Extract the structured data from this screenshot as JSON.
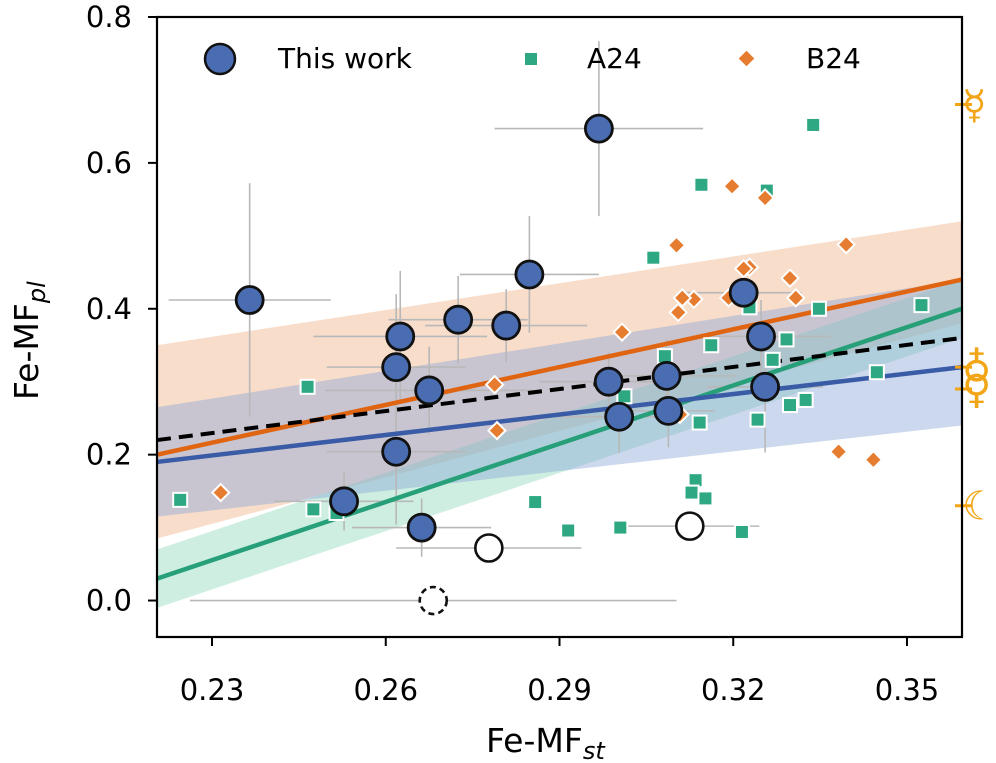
{
  "chart_data": {
    "type": "scatter",
    "xlabel_main": "Fe-MF",
    "xlabel_sub": "st",
    "ylabel_main": "Fe-MF",
    "ylabel_sub": "pl",
    "xlim": [
      0.2205,
      0.3595
    ],
    "ylim": [
      -0.05,
      0.8
    ],
    "xticks": [
      0.23,
      0.26,
      0.29,
      0.32,
      0.35
    ],
    "xtick_labels": [
      "0.23",
      "0.26",
      "0.29",
      "0.32",
      "0.35"
    ],
    "yticks": [
      0.0,
      0.2,
      0.4,
      0.6,
      0.8
    ],
    "ytick_labels": [
      "0.0",
      "0.2",
      "0.4",
      "0.6",
      "0.8"
    ],
    "legend": [
      {
        "label": "This work",
        "marker": "circle",
        "color": "#4a6db2"
      },
      {
        "label": "A24",
        "marker": "square",
        "color": "#2ea882"
      },
      {
        "label": "B24",
        "marker": "diamond",
        "color": "#e57c2f"
      }
    ],
    "colors": {
      "this_work": "#4a6db2",
      "a24": "#2ea882",
      "b24": "#e57c2f",
      "planet": "#f2a516",
      "errorbar": "#b8b8b8"
    },
    "fits": [
      {
        "name": "B24 fit",
        "color": "#e06512",
        "x": [
          0.2205,
          0.3595
        ],
        "y": [
          0.2,
          0.44
        ],
        "band_lo": [
          0.085,
          0.38
        ],
        "band_hi": [
          0.35,
          0.52
        ],
        "band_color": "#f0b48a"
      },
      {
        "name": "A24 fit",
        "color": "#27a07a",
        "x": [
          0.2205,
          0.3595
        ],
        "y": [
          0.03,
          0.4
        ],
        "band_lo": [
          -0.01,
          0.36
        ],
        "band_hi": [
          0.07,
          0.44
        ],
        "band_color": "#90d9bd"
      },
      {
        "name": "This work fit",
        "color": "#3a5ba6",
        "x": [
          0.2205,
          0.3595
        ],
        "y": [
          0.19,
          0.32
        ],
        "band_lo": [
          0.115,
          0.24
        ],
        "band_hi": [
          0.265,
          0.44
        ],
        "band_color": "#8ea8d6"
      },
      {
        "name": "Combined fit",
        "color": "#000000",
        "dashed": true,
        "x": [
          0.2205,
          0.3595
        ],
        "y": [
          0.22,
          0.36
        ]
      }
    ],
    "series": [
      {
        "name": "This work",
        "marker": "circle",
        "points": [
          [
            0.2365,
            0.412,
            0.014,
            0.16
          ],
          [
            0.2618,
            0.32,
            0.012,
            0.1
          ],
          [
            0.2625,
            0.362,
            0.015,
            0.09
          ],
          [
            0.2618,
            0.204,
            0.012,
            0.1
          ],
          [
            0.2675,
            0.288,
            0.018,
            0.06
          ],
          [
            0.2725,
            0.385,
            0.012,
            0.06
          ],
          [
            0.2808,
            0.377,
            0.014,
            0.05
          ],
          [
            0.2848,
            0.447,
            0.012,
            0.08
          ],
          [
            0.2968,
            0.647,
            0.018,
            0.12
          ],
          [
            0.2985,
            0.3,
            0.012,
            0.04
          ],
          [
            0.3003,
            0.252,
            0.012,
            0.05
          ],
          [
            0.3085,
            0.308,
            0.012,
            0.05
          ],
          [
            0.3088,
            0.26,
            0.008,
            0.05
          ],
          [
            0.3218,
            0.422,
            0.01,
            0.03
          ],
          [
            0.3248,
            0.362,
            0.012,
            0.05
          ],
          [
            0.3255,
            0.293,
            0.01,
            0.09
          ],
          [
            0.2528,
            0.136,
            0.012,
            0.04
          ],
          [
            0.2662,
            0.1,
            0.012,
            0.04
          ]
        ]
      },
      {
        "name": "This work (open)",
        "marker": "open-circle",
        "points": [
          [
            0.2778,
            0.072,
            0.016,
            0.0
          ],
          [
            0.3125,
            0.102,
            0.012,
            0.0
          ]
        ]
      },
      {
        "name": "This work (dashed)",
        "marker": "dashed-circle",
        "points": [
          [
            0.2682,
            0.0,
            0.042,
            0.0
          ]
        ]
      },
      {
        "name": "A24",
        "marker": "square",
        "points": [
          [
            0.3338,
            0.652
          ],
          [
            0.3258,
            0.562
          ],
          [
            0.3145,
            0.57
          ],
          [
            0.3062,
            0.47
          ],
          [
            0.2245,
            0.138
          ],
          [
            0.2475,
            0.125
          ],
          [
            0.2515,
            0.12
          ],
          [
            0.2858,
            0.135
          ],
          [
            0.2915,
            0.096
          ],
          [
            0.3005,
            0.1
          ],
          [
            0.3215,
            0.094
          ],
          [
            0.3135,
            0.165
          ],
          [
            0.3128,
            0.148
          ],
          [
            0.3152,
            0.14
          ],
          [
            0.3082,
            0.335
          ],
          [
            0.3162,
            0.35
          ],
          [
            0.3228,
            0.402
          ],
          [
            0.3292,
            0.358
          ],
          [
            0.3268,
            0.33
          ],
          [
            0.3348,
            0.4
          ],
          [
            0.3525,
            0.405
          ],
          [
            0.3448,
            0.313
          ],
          [
            0.3325,
            0.275
          ],
          [
            0.3298,
            0.268
          ],
          [
            0.3242,
            0.248
          ],
          [
            0.3142,
            0.244
          ],
          [
            0.3012,
            0.28
          ],
          [
            0.2465,
            0.293
          ]
        ]
      },
      {
        "name": "B24",
        "marker": "diamond",
        "points": [
          [
            0.3198,
            0.568
          ],
          [
            0.3255,
            0.552
          ],
          [
            0.3395,
            0.488
          ],
          [
            0.3102,
            0.487
          ],
          [
            0.3228,
            0.457
          ],
          [
            0.3218,
            0.455
          ],
          [
            0.3298,
            0.442
          ],
          [
            0.3192,
            0.415
          ],
          [
            0.3212,
            0.42
          ],
          [
            0.3132,
            0.413
          ],
          [
            0.3105,
            0.395
          ],
          [
            0.3112,
            0.415
          ],
          [
            0.3308,
            0.415
          ],
          [
            0.3008,
            0.368
          ],
          [
            0.2788,
            0.296
          ],
          [
            0.2792,
            0.233
          ],
          [
            0.3108,
            0.255
          ],
          [
            0.3382,
            0.204
          ],
          [
            0.3442,
            0.193
          ],
          [
            0.2315,
            0.148
          ]
        ]
      }
    ],
    "planets": [
      {
        "name": "Mercury",
        "symbol": "☿",
        "y": 0.68
      },
      {
        "name": "Earth",
        "symbol": "♁",
        "y": 0.32
      },
      {
        "name": "Venus",
        "symbol": "♀",
        "y": 0.29
      },
      {
        "name": "Moon",
        "symbol": "☾",
        "y": 0.13
      }
    ]
  }
}
